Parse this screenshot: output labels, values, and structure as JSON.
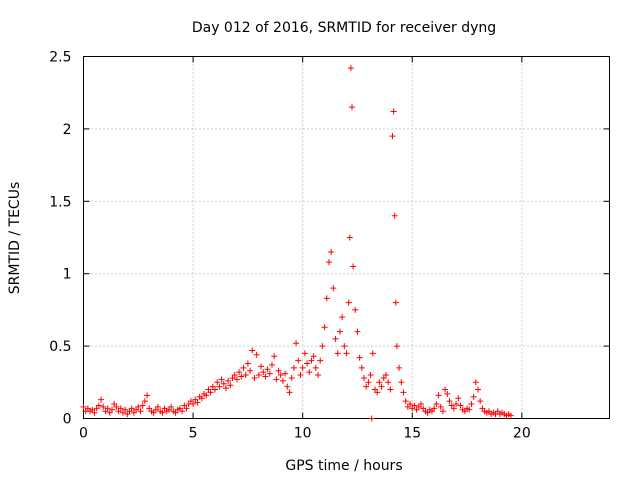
{
  "chart_data": {
    "type": "scatter",
    "title": "Day 012 of 2016, SRMTID for receiver dyng",
    "xlabel": "GPS time / hours",
    "ylabel": "SRMTID / TECUs",
    "xlim": [
      0,
      24
    ],
    "ylim": [
      0,
      2.5
    ],
    "x_ticks": [
      0,
      5,
      10,
      15,
      20
    ],
    "x_tick_labels": [
      "0",
      "5",
      "10",
      "15",
      "20"
    ],
    "y_ticks": [
      0,
      0.5,
      1,
      1.5,
      2,
      2.5
    ],
    "y_tick_labels": [
      "0",
      "0.5",
      "1",
      "1.5",
      "2",
      "2.5"
    ],
    "grid": true,
    "marker": "+",
    "marker_color": "#ff0000",
    "series": [
      {
        "name": "dyng",
        "points": [
          [
            0.0,
            0.08
          ],
          [
            0.1,
            0.05
          ],
          [
            0.2,
            0.07
          ],
          [
            0.3,
            0.05
          ],
          [
            0.4,
            0.06
          ],
          [
            0.5,
            0.04
          ],
          [
            0.6,
            0.07
          ],
          [
            0.7,
            0.09
          ],
          [
            0.8,
            0.13
          ],
          [
            0.9,
            0.08
          ],
          [
            1.0,
            0.05
          ],
          [
            1.1,
            0.07
          ],
          [
            1.2,
            0.04
          ],
          [
            1.3,
            0.06
          ],
          [
            1.4,
            0.1
          ],
          [
            1.5,
            0.08
          ],
          [
            1.6,
            0.05
          ],
          [
            1.7,
            0.07
          ],
          [
            1.8,
            0.04
          ],
          [
            1.9,
            0.06
          ],
          [
            2.0,
            0.03
          ],
          [
            2.1,
            0.05
          ],
          [
            2.2,
            0.07
          ],
          [
            2.3,
            0.04
          ],
          [
            2.4,
            0.06
          ],
          [
            2.5,
            0.08
          ],
          [
            2.6,
            0.05
          ],
          [
            2.7,
            0.09
          ],
          [
            2.8,
            0.12
          ],
          [
            2.9,
            0.16
          ],
          [
            3.0,
            0.07
          ],
          [
            3.1,
            0.05
          ],
          [
            3.2,
            0.04
          ],
          [
            3.3,
            0.06
          ],
          [
            3.4,
            0.08
          ],
          [
            3.5,
            0.05
          ],
          [
            3.6,
            0.04
          ],
          [
            3.7,
            0.07
          ],
          [
            3.8,
            0.05
          ],
          [
            3.9,
            0.06
          ],
          [
            4.0,
            0.08
          ],
          [
            4.1,
            0.05
          ],
          [
            4.2,
            0.04
          ],
          [
            4.3,
            0.06
          ],
          [
            4.4,
            0.07
          ],
          [
            4.5,
            0.05
          ],
          [
            4.6,
            0.09
          ],
          [
            4.7,
            0.07
          ],
          [
            4.8,
            0.1
          ],
          [
            4.9,
            0.12
          ],
          [
            5.0,
            0.1
          ],
          [
            5.1,
            0.13
          ],
          [
            5.2,
            0.11
          ],
          [
            5.3,
            0.15
          ],
          [
            5.4,
            0.14
          ],
          [
            5.5,
            0.17
          ],
          [
            5.6,
            0.16
          ],
          [
            5.7,
            0.2
          ],
          [
            5.8,
            0.18
          ],
          [
            5.9,
            0.22
          ],
          [
            6.0,
            0.2
          ],
          [
            6.1,
            0.25
          ],
          [
            6.2,
            0.22
          ],
          [
            6.3,
            0.27
          ],
          [
            6.4,
            0.24
          ],
          [
            6.5,
            0.21
          ],
          [
            6.6,
            0.26
          ],
          [
            6.7,
            0.23
          ],
          [
            6.8,
            0.28
          ],
          [
            6.9,
            0.3
          ],
          [
            7.0,
            0.27
          ],
          [
            7.1,
            0.32
          ],
          [
            7.2,
            0.29
          ],
          [
            7.3,
            0.35
          ],
          [
            7.4,
            0.3
          ],
          [
            7.5,
            0.38
          ],
          [
            7.6,
            0.33
          ],
          [
            7.7,
            0.47
          ],
          [
            7.8,
            0.28
          ],
          [
            7.9,
            0.44
          ],
          [
            8.0,
            0.3
          ],
          [
            8.1,
            0.36
          ],
          [
            8.2,
            0.32
          ],
          [
            8.3,
            0.29
          ],
          [
            8.4,
            0.34
          ],
          [
            8.5,
            0.31
          ],
          [
            8.6,
            0.37
          ],
          [
            8.7,
            0.43
          ],
          [
            8.8,
            0.27
          ],
          [
            8.9,
            0.33
          ],
          [
            9.0,
            0.3
          ],
          [
            9.1,
            0.26
          ],
          [
            9.2,
            0.31
          ],
          [
            9.3,
            0.22
          ],
          [
            9.4,
            0.18
          ],
          [
            9.5,
            0.28
          ],
          [
            9.6,
            0.35
          ],
          [
            9.7,
            0.52
          ],
          [
            9.8,
            0.4
          ],
          [
            9.9,
            0.3
          ],
          [
            10.0,
            0.35
          ],
          [
            10.1,
            0.45
          ],
          [
            10.2,
            0.38
          ],
          [
            10.3,
            0.32
          ],
          [
            10.4,
            0.4
          ],
          [
            10.5,
            0.43
          ],
          [
            10.6,
            0.35
          ],
          [
            10.7,
            0.3
          ],
          [
            10.8,
            0.4
          ],
          [
            10.9,
            0.5
          ],
          [
            11.0,
            0.63
          ],
          [
            11.1,
            0.83
          ],
          [
            11.2,
            1.08
          ],
          [
            11.3,
            1.15
          ],
          [
            11.4,
            0.9
          ],
          [
            11.5,
            0.55
          ],
          [
            11.6,
            0.45
          ],
          [
            11.7,
            0.6
          ],
          [
            11.8,
            0.7
          ],
          [
            11.9,
            0.5
          ],
          [
            12.0,
            0.45
          ],
          [
            12.1,
            0.8
          ],
          [
            12.15,
            1.25
          ],
          [
            12.2,
            2.42
          ],
          [
            12.25,
            2.15
          ],
          [
            12.3,
            1.05
          ],
          [
            12.4,
            0.75
          ],
          [
            12.5,
            0.6
          ],
          [
            12.6,
            0.42
          ],
          [
            12.7,
            0.35
          ],
          [
            12.8,
            0.28
          ],
          [
            12.9,
            0.22
          ],
          [
            13.0,
            0.25
          ],
          [
            13.1,
            0.3
          ],
          [
            13.15,
            0.0
          ],
          [
            13.2,
            0.45
          ],
          [
            13.3,
            0.2
          ],
          [
            13.4,
            0.18
          ],
          [
            13.5,
            0.25
          ],
          [
            13.6,
            0.22
          ],
          [
            13.7,
            0.28
          ],
          [
            13.8,
            0.3
          ],
          [
            13.9,
            0.25
          ],
          [
            14.0,
            0.2
          ],
          [
            14.1,
            1.95
          ],
          [
            14.15,
            2.12
          ],
          [
            14.2,
            1.4
          ],
          [
            14.25,
            0.8
          ],
          [
            14.3,
            0.5
          ],
          [
            14.4,
            0.35
          ],
          [
            14.5,
            0.25
          ],
          [
            14.6,
            0.18
          ],
          [
            14.7,
            0.12
          ],
          [
            14.8,
            0.08
          ],
          [
            14.9,
            0.1
          ],
          [
            15.0,
            0.07
          ],
          [
            15.1,
            0.09
          ],
          [
            15.2,
            0.06
          ],
          [
            15.3,
            0.08
          ],
          [
            15.4,
            0.1
          ],
          [
            15.5,
            0.07
          ],
          [
            15.6,
            0.05
          ],
          [
            15.7,
            0.04
          ],
          [
            15.8,
            0.06
          ],
          [
            15.9,
            0.05
          ],
          [
            16.0,
            0.07
          ],
          [
            16.1,
            0.1
          ],
          [
            16.2,
            0.16
          ],
          [
            16.3,
            0.08
          ],
          [
            16.4,
            0.05
          ],
          [
            16.5,
            0.2
          ],
          [
            16.6,
            0.17
          ],
          [
            16.7,
            0.12
          ],
          [
            16.8,
            0.09
          ],
          [
            16.9,
            0.07
          ],
          [
            17.0,
            0.1
          ],
          [
            17.1,
            0.14
          ],
          [
            17.2,
            0.09
          ],
          [
            17.3,
            0.06
          ],
          [
            17.4,
            0.05
          ],
          [
            17.5,
            0.07
          ],
          [
            17.6,
            0.06
          ],
          [
            17.7,
            0.1
          ],
          [
            17.8,
            0.15
          ],
          [
            17.9,
            0.25
          ],
          [
            18.0,
            0.2
          ],
          [
            18.1,
            0.12
          ],
          [
            18.2,
            0.07
          ],
          [
            18.3,
            0.05
          ],
          [
            18.4,
            0.04
          ],
          [
            18.5,
            0.05
          ],
          [
            18.6,
            0.03
          ],
          [
            18.7,
            0.04
          ],
          [
            18.8,
            0.03
          ],
          [
            18.9,
            0.05
          ],
          [
            19.0,
            0.03
          ],
          [
            19.1,
            0.04
          ],
          [
            19.2,
            0.03
          ],
          [
            19.3,
            0.02
          ],
          [
            19.4,
            0.03
          ],
          [
            19.5,
            0.02
          ]
        ]
      }
    ]
  }
}
